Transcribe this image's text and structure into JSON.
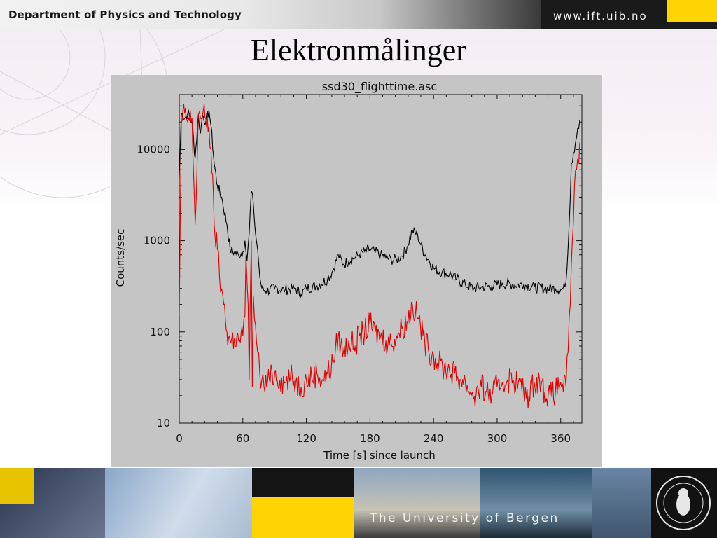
{
  "header": {
    "department": "Department of Physics and Technology",
    "website": "www.ift.uib.no"
  },
  "slide": {
    "title": "Elektronmålinger"
  },
  "footer": {
    "university": "The University of Bergen"
  },
  "colors": {
    "series_black": "#000000",
    "series_red": "#e00000",
    "plot_background": "#c5c5c5",
    "header_accent": "#ffd400"
  },
  "chart_data": {
    "type": "line",
    "title": "ssd30_flighttime.asc",
    "xlabel": "Time [s] since launch",
    "ylabel": "Counts/sec",
    "xlim": [
      0,
      380
    ],
    "ylim": [
      10,
      40000
    ],
    "yscale": "log",
    "grid": false,
    "x_ticks": [
      0,
      60,
      120,
      180,
      240,
      300,
      360
    ],
    "x_tick_labels": [
      "0",
      "60",
      "120",
      "180",
      "240",
      "300",
      "360"
    ],
    "y_ticks": [
      10,
      100,
      1000,
      10000
    ],
    "y_tick_labels": [
      "10",
      "100",
      "1000",
      "10000"
    ],
    "series": [
      {
        "color": "#000000",
        "x": [
          0,
          2,
          5,
          8,
          12,
          15,
          18,
          20,
          22,
          25,
          28,
          30,
          33,
          36,
          40,
          45,
          48,
          52,
          56,
          60,
          62,
          64,
          66,
          68,
          70,
          72,
          74,
          76,
          78,
          82,
          90,
          100,
          110,
          115,
          120,
          130,
          140,
          145,
          150,
          155,
          160,
          165,
          170,
          175,
          180,
          185,
          190,
          195,
          200,
          205,
          210,
          215,
          220,
          225,
          228,
          232,
          236,
          240,
          248,
          255,
          262,
          270,
          278,
          285,
          295,
          305,
          315,
          325,
          335,
          345,
          355,
          360,
          364,
          366,
          368,
          370,
          372,
          374,
          376,
          378
        ],
        "y": [
          5000,
          25000,
          22000,
          25000,
          20000,
          8000,
          24000,
          15000,
          24000,
          20000,
          27000,
          18000,
          7000,
          4000,
          3000,
          1500,
          800,
          750,
          700,
          750,
          1000,
          600,
          1200,
          3500,
          2500,
          1200,
          800,
          400,
          300,
          280,
          300,
          290,
          300,
          260,
          300,
          320,
          380,
          470,
          700,
          550,
          600,
          650,
          700,
          760,
          800,
          750,
          700,
          650,
          620,
          620,
          680,
          850,
          1300,
          1150,
          900,
          700,
          600,
          500,
          450,
          430,
          380,
          330,
          300,
          310,
          320,
          340,
          330,
          330,
          310,
          300,
          300,
          290,
          310,
          500,
          1500,
          7000,
          9000,
          12000,
          17000,
          21000
        ]
      },
      {
        "color": "#e00000",
        "x": [
          0,
          2,
          5,
          8,
          12,
          15,
          17,
          18,
          20,
          22,
          25,
          28,
          30,
          33,
          36,
          38,
          40,
          42,
          45,
          48,
          52,
          56,
          60,
          62,
          63,
          65,
          66,
          68,
          69,
          70,
          72,
          74,
          76,
          78,
          80,
          85,
          90,
          95,
          100,
          105,
          110,
          115,
          120,
          125,
          130,
          135,
          140,
          145,
          150,
          155,
          160,
          165,
          170,
          175,
          180,
          185,
          190,
          195,
          200,
          205,
          210,
          215,
          220,
          223,
          226,
          230,
          235,
          240,
          245,
          250,
          255,
          260,
          265,
          270,
          275,
          280,
          285,
          290,
          295,
          300,
          305,
          310,
          315,
          320,
          325,
          330,
          335,
          340,
          345,
          350,
          355,
          360,
          365,
          367,
          369,
          371,
          373,
          375,
          377,
          378
        ],
        "y": [
          150,
          20000,
          25000,
          20000,
          22000,
          1500,
          8000,
          24000,
          22000,
          24000,
          22000,
          18000,
          10000,
          1500,
          800,
          400,
          300,
          200,
          100,
          80,
          85,
          80,
          90,
          150,
          700,
          200,
          30,
          1000,
          25,
          250,
          120,
          60,
          35,
          30,
          25,
          30,
          35,
          30,
          28,
          32,
          28,
          25,
          30,
          32,
          35,
          30,
          35,
          45,
          90,
          60,
          80,
          70,
          90,
          100,
          120,
          100,
          90,
          80,
          75,
          90,
          110,
          130,
          200,
          160,
          140,
          90,
          65,
          55,
          45,
          40,
          38,
          35,
          30,
          28,
          22,
          20,
          25,
          22,
          20,
          25,
          28,
          30,
          30,
          28,
          22,
          20,
          28,
          30,
          22,
          20,
          22,
          28,
          25,
          60,
          200,
          1000,
          4000,
          6000,
          7000,
          12000
        ]
      }
    ]
  }
}
